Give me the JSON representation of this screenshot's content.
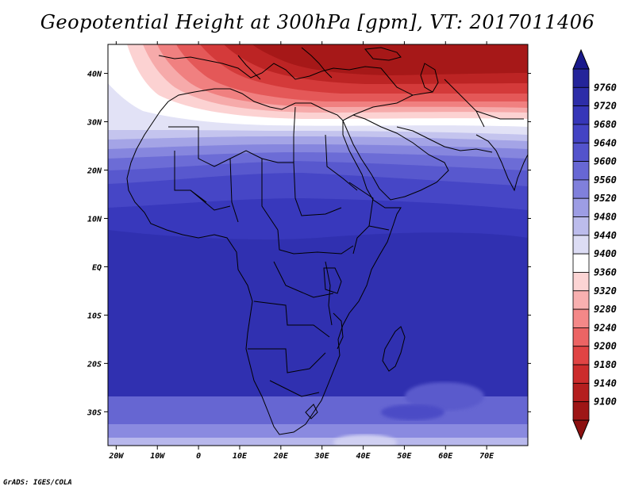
{
  "title": "Geopotential Height at 300hPa [gpm], VT: 2017011406",
  "credit": "GrADS: IGES/COLA",
  "map": {
    "lon_range": [
      -22,
      80
    ],
    "lat_range": [
      -37,
      46
    ],
    "x_ticks": [
      {
        "v": -20,
        "label": "20W"
      },
      {
        "v": -10,
        "label": "10W"
      },
      {
        "v": 0,
        "label": "0"
      },
      {
        "v": 10,
        "label": "10E"
      },
      {
        "v": 20,
        "label": "20E"
      },
      {
        "v": 30,
        "label": "30E"
      },
      {
        "v": 40,
        "label": "40E"
      },
      {
        "v": 50,
        "label": "50E"
      },
      {
        "v": 60,
        "label": "60E"
      },
      {
        "v": 70,
        "label": "70E"
      }
    ],
    "y_ticks": [
      {
        "v": 40,
        "label": "40N"
      },
      {
        "v": 30,
        "label": "30N"
      },
      {
        "v": 20,
        "label": "20N"
      },
      {
        "v": 10,
        "label": "10N"
      },
      {
        "v": 0,
        "label": "EQ"
      },
      {
        "v": -10,
        "label": "10S"
      },
      {
        "v": -20,
        "label": "20S"
      },
      {
        "v": -30,
        "label": "30S"
      }
    ]
  },
  "colorbar": {
    "labels": [
      "9760",
      "9720",
      "9680",
      "9640",
      "9600",
      "9560",
      "9520",
      "9480",
      "9440",
      "9400",
      "9360",
      "9320",
      "9280",
      "9240",
      "9200",
      "9180",
      "9140",
      "9100"
    ],
    "colors": [
      "#24249a",
      "#2d2da8",
      "#3636b8",
      "#4343c4",
      "#5353cc",
      "#6767d4",
      "#8080dc",
      "#9d9de4",
      "#bcbcec",
      "#dcdcf4",
      "#ffffff",
      "#fcd4d4",
      "#f8b0b0",
      "#f48888",
      "#ec6464",
      "#e04444",
      "#cc2c2c",
      "#b41e1e",
      "#9e1616"
    ],
    "top_arrow_color": "#1a1a8c",
    "bottom_arrow_color": "#8c1010"
  }
}
